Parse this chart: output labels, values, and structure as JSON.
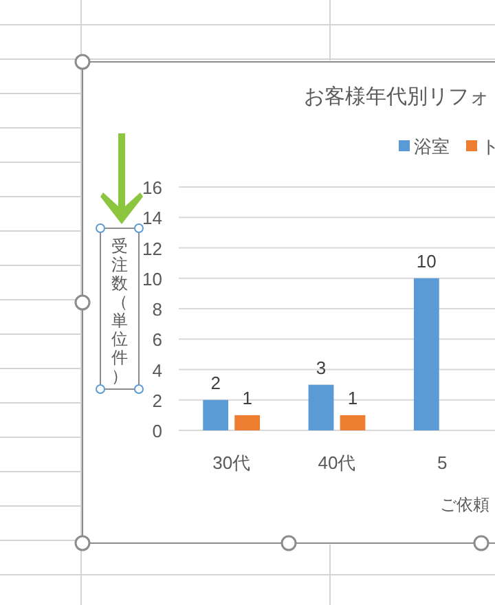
{
  "chart_data": {
    "type": "bar",
    "title": "お客様年代別リフォ",
    "xlabel": "ご依頼",
    "ylabel": "受注数（単位件）",
    "categories": [
      "30代",
      "40代",
      "5"
    ],
    "series": [
      {
        "name": "浴室",
        "color": "#5b9bd5",
        "values": [
          2,
          3,
          10
        ]
      },
      {
        "name": "ト",
        "color": "#ed7d31",
        "values": [
          1,
          1,
          null
        ]
      }
    ],
    "ylim": [
      0,
      16
    ],
    "yticks": [
      0,
      2,
      4,
      6,
      8,
      10,
      12,
      14,
      16
    ],
    "grid": "y",
    "legend": "top right",
    "data_labels": true
  }
}
